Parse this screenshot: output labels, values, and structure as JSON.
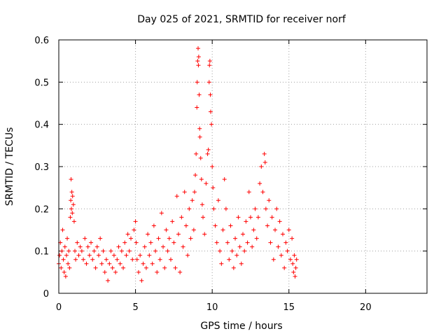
{
  "chart_data": {
    "type": "scatter",
    "title": "Day 025 of 2021, SRMTID for receiver norf",
    "xlabel": "GPS time / hours",
    "ylabel": "SRMTID / TECUs",
    "xlim": [
      0,
      24
    ],
    "ylim": [
      0,
      0.6
    ],
    "xticks": [
      0,
      5,
      10,
      15,
      20
    ],
    "xtick_labels": [
      "0",
      "5",
      "10",
      "15",
      "20"
    ],
    "yticks": [
      0,
      0.1,
      0.2,
      0.3,
      0.4,
      0.5,
      0.6
    ],
    "ytick_labels": [
      "0",
      "0.1",
      "0.2",
      "0.3",
      "0.4",
      "0.5",
      "0.6"
    ],
    "grid": true,
    "marker": "plus",
    "color": "#ff0000",
    "series": [
      {
        "name": "SRMTID",
        "points": [
          [
            0.0,
            0.07
          ],
          [
            0.05,
            0.09
          ],
          [
            0.1,
            0.12
          ],
          [
            0.15,
            0.06
          ],
          [
            0.2,
            0.1
          ],
          [
            0.25,
            0.15
          ],
          [
            0.3,
            0.08
          ],
          [
            0.35,
            0.05
          ],
          [
            0.4,
            0.11
          ],
          [
            0.45,
            0.04
          ],
          [
            0.5,
            0.09
          ],
          [
            0.55,
            0.13
          ],
          [
            0.6,
            0.07
          ],
          [
            0.65,
            0.1
          ],
          [
            0.7,
            0.06
          ],
          [
            0.75,
            0.18
          ],
          [
            0.78,
            0.22
          ],
          [
            0.8,
            0.27
          ],
          [
            0.82,
            0.2
          ],
          [
            0.85,
            0.24
          ],
          [
            0.88,
            0.19
          ],
          [
            0.9,
            0.23
          ],
          [
            0.95,
            0.21
          ],
          [
            1.0,
            0.17
          ],
          [
            1.05,
            0.1
          ],
          [
            1.1,
            0.08
          ],
          [
            1.2,
            0.12
          ],
          [
            1.3,
            0.09
          ],
          [
            1.4,
            0.11
          ],
          [
            1.5,
            0.1
          ],
          [
            1.6,
            0.08
          ],
          [
            1.7,
            0.13
          ],
          [
            1.8,
            0.07
          ],
          [
            1.9,
            0.11
          ],
          [
            2.0,
            0.09
          ],
          [
            2.1,
            0.12
          ],
          [
            2.2,
            0.08
          ],
          [
            2.3,
            0.1
          ],
          [
            2.4,
            0.06
          ],
          [
            2.5,
            0.11
          ],
          [
            2.6,
            0.09
          ],
          [
            2.7,
            0.13
          ],
          [
            2.8,
            0.07
          ],
          [
            2.9,
            0.1
          ],
          [
            3.0,
            0.05
          ],
          [
            3.1,
            0.08
          ],
          [
            3.2,
            0.03
          ],
          [
            3.3,
            0.07
          ],
          [
            3.4,
            0.1
          ],
          [
            3.5,
            0.06
          ],
          [
            3.6,
            0.09
          ],
          [
            3.7,
            0.05
          ],
          [
            3.8,
            0.08
          ],
          [
            3.9,
            0.11
          ],
          [
            4.0,
            0.07
          ],
          [
            4.1,
            0.1
          ],
          [
            4.2,
            0.06
          ],
          [
            4.3,
            0.12
          ],
          [
            4.4,
            0.09
          ],
          [
            4.5,
            0.14
          ],
          [
            4.6,
            0.1
          ],
          [
            4.7,
            0.13
          ],
          [
            4.8,
            0.08
          ],
          [
            4.9,
            0.15
          ],
          [
            5.0,
            0.17
          ],
          [
            5.05,
            0.12
          ],
          [
            5.1,
            0.08
          ],
          [
            5.2,
            0.05
          ],
          [
            5.3,
            0.09
          ],
          [
            5.4,
            0.03
          ],
          [
            5.5,
            0.07
          ],
          [
            5.6,
            0.11
          ],
          [
            5.7,
            0.06
          ],
          [
            5.8,
            0.14
          ],
          [
            5.9,
            0.09
          ],
          [
            6.0,
            0.12
          ],
          [
            6.1,
            0.07
          ],
          [
            6.2,
            0.16
          ],
          [
            6.3,
            0.1
          ],
          [
            6.4,
            0.05
          ],
          [
            6.5,
            0.13
          ],
          [
            6.6,
            0.08
          ],
          [
            6.7,
            0.19
          ],
          [
            6.8,
            0.11
          ],
          [
            6.9,
            0.06
          ],
          [
            7.0,
            0.15
          ],
          [
            7.1,
            0.1
          ],
          [
            7.2,
            0.13
          ],
          [
            7.3,
            0.08
          ],
          [
            7.4,
            0.17
          ],
          [
            7.5,
            0.12
          ],
          [
            7.6,
            0.06
          ],
          [
            7.7,
            0.23
          ],
          [
            7.8,
            0.14
          ],
          [
            7.9,
            0.05
          ],
          [
            8.0,
            0.18
          ],
          [
            8.1,
            0.11
          ],
          [
            8.2,
            0.24
          ],
          [
            8.3,
            0.16
          ],
          [
            8.4,
            0.09
          ],
          [
            8.5,
            0.2
          ],
          [
            8.6,
            0.13
          ],
          [
            8.7,
            0.22
          ],
          [
            8.8,
            0.15
          ],
          [
            8.85,
            0.24
          ],
          [
            8.9,
            0.28
          ],
          [
            8.95,
            0.33
          ],
          [
            9.0,
            0.44
          ],
          [
            9.02,
            0.5
          ],
          [
            9.05,
            0.55
          ],
          [
            9.08,
            0.58
          ],
          [
            9.1,
            0.54
          ],
          [
            9.12,
            0.56
          ],
          [
            9.15,
            0.47
          ],
          [
            9.18,
            0.39
          ],
          [
            9.2,
            0.37
          ],
          [
            9.25,
            0.32
          ],
          [
            9.3,
            0.27
          ],
          [
            9.35,
            0.21
          ],
          [
            9.4,
            0.18
          ],
          [
            9.5,
            0.14
          ],
          [
            9.6,
            0.26
          ],
          [
            9.7,
            0.33
          ],
          [
            9.75,
            0.34
          ],
          [
            9.8,
            0.5
          ],
          [
            9.82,
            0.54
          ],
          [
            9.85,
            0.55
          ],
          [
            9.88,
            0.47
          ],
          [
            9.9,
            0.43
          ],
          [
            9.95,
            0.4
          ],
          [
            10.0,
            0.3
          ],
          [
            10.05,
            0.25
          ],
          [
            10.1,
            0.2
          ],
          [
            10.2,
            0.16
          ],
          [
            10.3,
            0.12
          ],
          [
            10.4,
            0.22
          ],
          [
            10.5,
            0.1
          ],
          [
            10.6,
            0.07
          ],
          [
            10.7,
            0.15
          ],
          [
            10.8,
            0.27
          ],
          [
            10.9,
            0.2
          ],
          [
            11.0,
            0.12
          ],
          [
            11.1,
            0.08
          ],
          [
            11.2,
            0.16
          ],
          [
            11.3,
            0.1
          ],
          [
            11.4,
            0.06
          ],
          [
            11.5,
            0.13
          ],
          [
            11.6,
            0.09
          ],
          [
            11.7,
            0.18
          ],
          [
            11.8,
            0.11
          ],
          [
            11.9,
            0.07
          ],
          [
            12.0,
            0.14
          ],
          [
            12.1,
            0.1
          ],
          [
            12.2,
            0.17
          ],
          [
            12.3,
            0.12
          ],
          [
            12.4,
            0.24
          ],
          [
            12.5,
            0.18
          ],
          [
            12.6,
            0.11
          ],
          [
            12.7,
            0.15
          ],
          [
            12.8,
            0.2
          ],
          [
            12.9,
            0.13
          ],
          [
            13.0,
            0.18
          ],
          [
            13.1,
            0.26
          ],
          [
            13.2,
            0.3
          ],
          [
            13.3,
            0.24
          ],
          [
            13.4,
            0.33
          ],
          [
            13.45,
            0.31
          ],
          [
            13.5,
            0.2
          ],
          [
            13.6,
            0.16
          ],
          [
            13.7,
            0.22
          ],
          [
            13.8,
            0.12
          ],
          [
            13.9,
            0.18
          ],
          [
            14.0,
            0.08
          ],
          [
            14.1,
            0.15
          ],
          [
            14.2,
            0.2
          ],
          [
            14.3,
            0.11
          ],
          [
            14.4,
            0.17
          ],
          [
            14.5,
            0.09
          ],
          [
            14.6,
            0.14
          ],
          [
            14.7,
            0.06
          ],
          [
            14.8,
            0.12
          ],
          [
            14.9,
            0.1
          ],
          [
            15.0,
            0.15
          ],
          [
            15.1,
            0.08
          ],
          [
            15.2,
            0.13
          ],
          [
            15.25,
            0.07
          ],
          [
            15.3,
            0.05
          ],
          [
            15.35,
            0.09
          ],
          [
            15.4,
            0.04
          ],
          [
            15.45,
            0.06
          ],
          [
            15.5,
            0.08
          ]
        ]
      }
    ]
  }
}
